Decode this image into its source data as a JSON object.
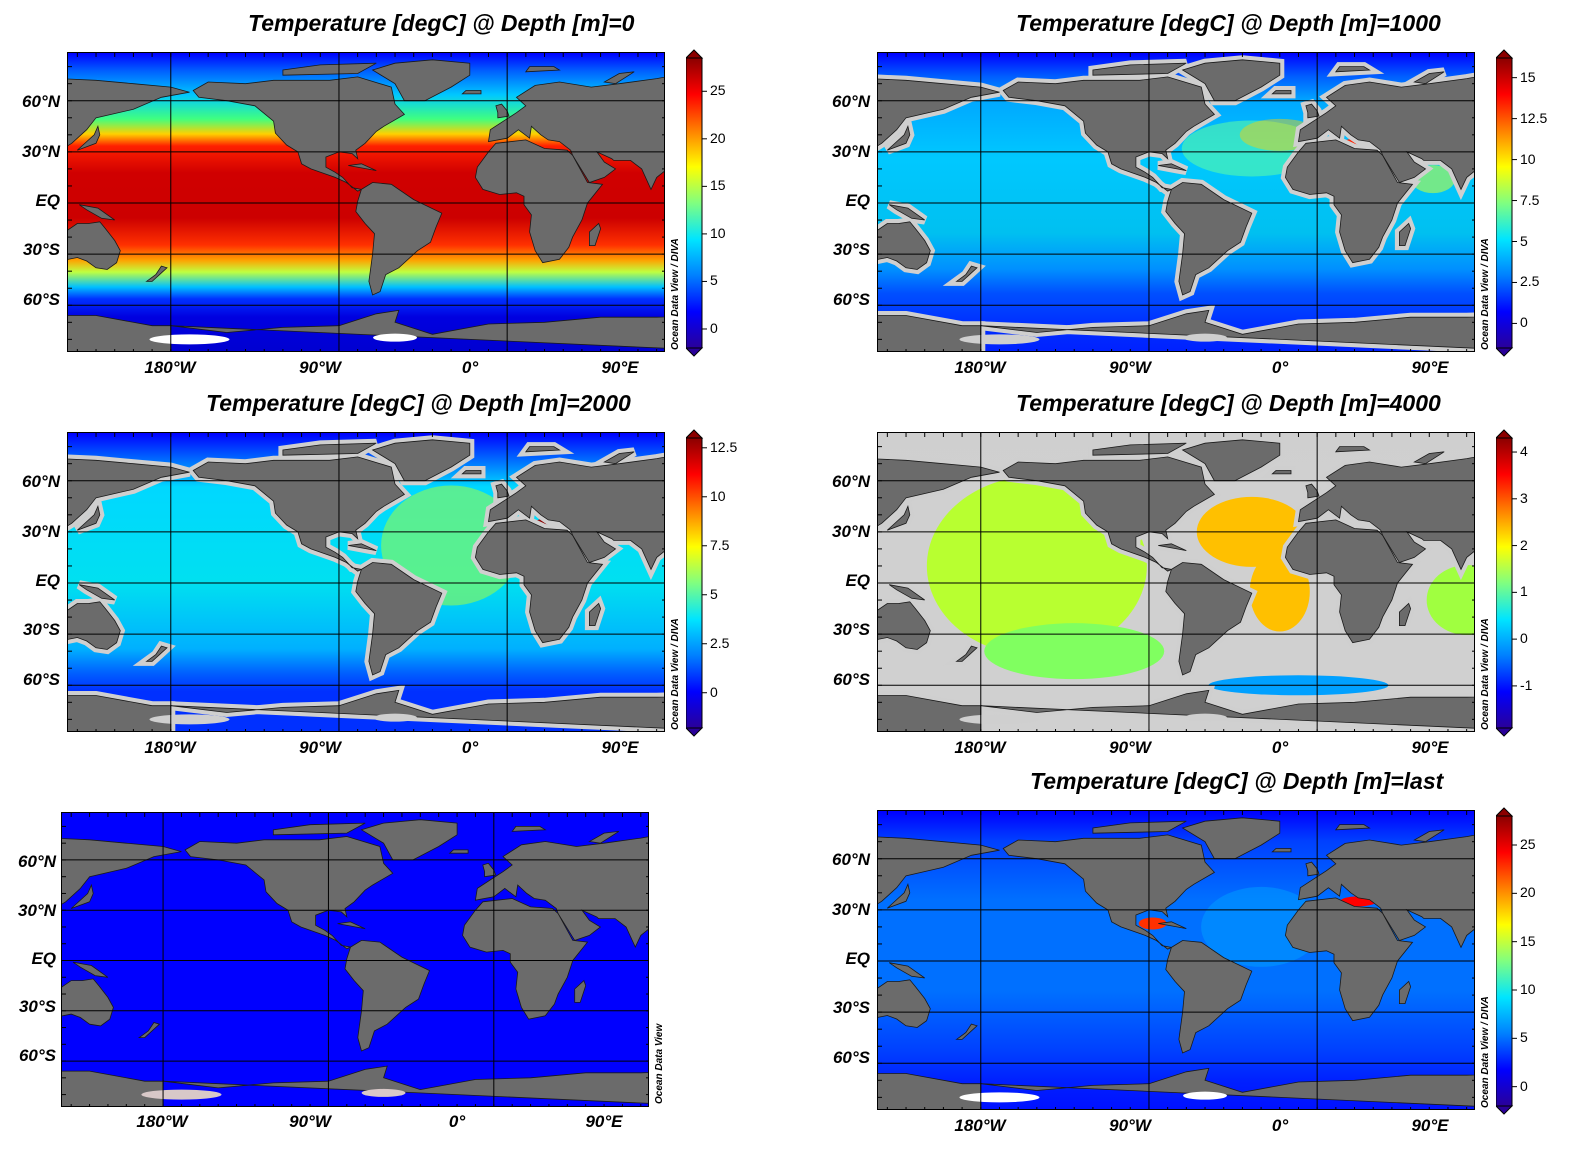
{
  "panels": [
    {
      "id": "depth-0",
      "title": "Temperature [degC] @ Depth [m]=0",
      "credit": "Ocean Data View / DIVA",
      "lat_labels": [
        "60°N",
        "30°N",
        "EQ",
        "30°S",
        "60°S"
      ],
      "lon_labels": [
        "180°W",
        "90°W",
        "0°",
        "90°E"
      ],
      "colorbar": {
        "ticks": [
          "25",
          "20",
          "15",
          "10",
          "5",
          "0"
        ],
        "tick_values": [
          25,
          20,
          15,
          10,
          5,
          0
        ],
        "range": [
          -2,
          28.5
        ]
      },
      "field_style": "surface"
    },
    {
      "id": "depth-1000",
      "title": "Temperature [degC] @ Depth [m]=1000",
      "credit": "Ocean Data View / DIVA",
      "lat_labels": [
        "60°N",
        "30°N",
        "EQ",
        "30°S",
        "60°S"
      ],
      "lon_labels": [
        "180°W",
        "90°W",
        "0°",
        "90°E"
      ],
      "colorbar": {
        "ticks": [
          "15",
          "12.5",
          "10",
          "7.5",
          "5",
          "2.5",
          "0"
        ],
        "tick_values": [
          15,
          12.5,
          10,
          7.5,
          5,
          2.5,
          0
        ],
        "range": [
          -1.5,
          16.2
        ]
      },
      "field_style": "d1000"
    },
    {
      "id": "depth-2000",
      "title": "Temperature [degC] @ Depth [m]=2000",
      "credit": "Ocean Data View / DIVA",
      "lat_labels": [
        "60°N",
        "30°N",
        "EQ",
        "30°S",
        "60°S"
      ],
      "lon_labels": [
        "180°W",
        "90°W",
        "0°",
        "90°E"
      ],
      "colorbar": {
        "ticks": [
          "12.5",
          "10",
          "7.5",
          "5",
          "2.5",
          "0"
        ],
        "tick_values": [
          12.5,
          10,
          7.5,
          5,
          2.5,
          0
        ],
        "range": [
          -1.8,
          13
        ]
      },
      "field_style": "d2000"
    },
    {
      "id": "depth-4000",
      "title": "Temperature [degC] @ Depth [m]=4000",
      "credit": "Ocean Data View / DIVA",
      "lat_labels": [
        "60°N",
        "30°N",
        "EQ",
        "30°S",
        "60°S"
      ],
      "lon_labels": [
        "180°W",
        "90°W",
        "0°",
        "90°E"
      ],
      "colorbar": {
        "ticks": [
          "4",
          "3",
          "2",
          "1",
          "0",
          "-1"
        ],
        "tick_values": [
          4,
          3,
          2,
          1,
          0,
          -1
        ],
        "range": [
          -1.9,
          4.3
        ]
      },
      "field_style": "d4000"
    },
    {
      "id": "empty-panel",
      "title": "",
      "credit": "Ocean Data View",
      "lat_labels": [
        "60°N",
        "30°N",
        "EQ",
        "30°S",
        "60°S"
      ],
      "lon_labels": [
        "180°W",
        "90°W",
        "0°",
        "90°E"
      ],
      "field_style": "blank"
    },
    {
      "id": "depth-last",
      "title": "Temperature [degC] @ Depth [m]=last",
      "credit": "Ocean Data View / DIVA",
      "lat_labels": [
        "60°N",
        "30°N",
        "EQ",
        "30°S",
        "60°S"
      ],
      "lon_labels": [
        "180°W",
        "90°W",
        "0°",
        "90°E"
      ],
      "colorbar": {
        "ticks": [
          "25",
          "20",
          "15",
          "10",
          "5",
          "0"
        ],
        "tick_values": [
          25,
          20,
          15,
          10,
          5,
          0
        ],
        "range": [
          -2,
          28
        ]
      },
      "field_style": "bottom"
    }
  ],
  "colors": {
    "land": "#6b6b6b",
    "shelf": "#cfcfcf",
    "ice": "#ffffff",
    "blank_ocean": "#0000ff",
    "colormap": [
      "#2a0099",
      "#0000ff",
      "#0080ff",
      "#00e5ff",
      "#80ff80",
      "#ffff00",
      "#ff8000",
      "#ff0000",
      "#8b0000"
    ]
  }
}
